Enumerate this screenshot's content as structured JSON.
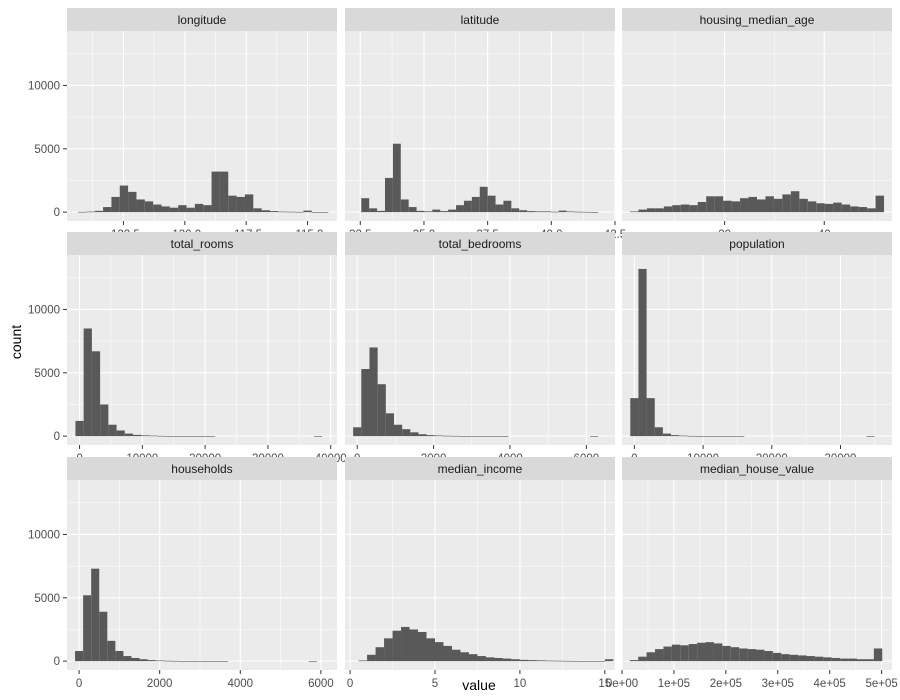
{
  "chart_data": {
    "type": "bar",
    "title": "",
    "xlabel": "value",
    "ylabel": "count",
    "ylim": [
      -700,
      14300
    ],
    "y_ticks": [
      0,
      5000,
      10000
    ],
    "y_tick_labels": [
      "0",
      "5000",
      "10000"
    ],
    "layout": {
      "rows": 3,
      "cols": 3
    },
    "colors": {
      "bar": "#595959",
      "panel": "#ebebeb",
      "strip": "#d9d9d9",
      "grid": "#ffffff"
    },
    "facets": [
      {
        "label": "longitude",
        "xlim": [
          -124.8,
          -113.8
        ],
        "x_ticks": [
          -122.5,
          -120.0,
          -117.5,
          -115.0
        ],
        "x_tick_labels": [
          "-122.5",
          "-120.0",
          "-117.5",
          "-115.0"
        ],
        "bin_start": -124.35,
        "bin_width": 0.34,
        "counts": [
          20,
          40,
          100,
          400,
          1200,
          2100,
          1600,
          1000,
          850,
          600,
          450,
          350,
          550,
          350,
          650,
          550,
          3200,
          3200,
          1300,
          1200,
          1400,
          300,
          150,
          80,
          40,
          30,
          20,
          120,
          10,
          5
        ]
      },
      {
        "label": "latitude",
        "xlim": [
          31.9,
          42.5
        ],
        "x_ticks": [
          32.5,
          35.0,
          37.5,
          40.0,
          42.5
        ],
        "x_tick_labels": [
          "32.5",
          "35.0",
          "37.5",
          "40.0",
          "42.5"
        ],
        "bin_start": 32.54,
        "bin_width": 0.31,
        "counts": [
          1100,
          300,
          100,
          2700,
          5400,
          1000,
          400,
          100,
          60,
          200,
          80,
          200,
          550,
          900,
          1200,
          2000,
          1300,
          600,
          900,
          300,
          150,
          80,
          60,
          60,
          30,
          120,
          50,
          30,
          20,
          10
        ]
      },
      {
        "label": "housing_median_age",
        "xlim": [
          -0.6,
          53.6
        ],
        "x_ticks": [
          20,
          40
        ],
        "x_tick_labels": [
          "20",
          "40"
        ],
        "bin_start": 1,
        "bin_width": 1.7,
        "counts": [
          50,
          200,
          300,
          300,
          450,
          550,
          600,
          550,
          800,
          1250,
          1250,
          900,
          850,
          1100,
          1200,
          1000,
          1250,
          1050,
          1400,
          1650,
          1050,
          850,
          700,
          650,
          750,
          600,
          450,
          400,
          300,
          1300
        ]
      },
      {
        "label": "total_rooms",
        "xlim": [
          -2000,
          41000
        ],
        "x_ticks": [
          0,
          10000,
          20000,
          30000,
          40000
        ],
        "x_tick_labels": [
          "0",
          "10000",
          "20000",
          "30000",
          "40000"
        ],
        "bin_start": -655,
        "bin_width": 1310,
        "counts": [
          1200,
          8500,
          6700,
          2500,
          900,
          450,
          200,
          100,
          60,
          40,
          20,
          10,
          5,
          3,
          2,
          1,
          1,
          0,
          0,
          0,
          0,
          0,
          0,
          0,
          0,
          0,
          0,
          0,
          0,
          1
        ]
      },
      {
        "label": "total_bedrooms",
        "xlim": [
          -320,
          6750
        ],
        "x_ticks": [
          0,
          2000,
          4000,
          6000
        ],
        "x_tick_labels": [
          "0",
          "2000",
          "4000",
          "6000"
        ],
        "bin_start": -107,
        "bin_width": 214,
        "counts": [
          700,
          5300,
          7000,
          4100,
          1800,
          900,
          550,
          300,
          150,
          80,
          50,
          30,
          20,
          10,
          5,
          3,
          2,
          1,
          1,
          0,
          0,
          0,
          0,
          0,
          0,
          0,
          0,
          0,
          0,
          1
        ]
      },
      {
        "label": "population",
        "xlim": [
          -1800,
          37500
        ],
        "x_ticks": [
          0,
          10000,
          20000,
          30000
        ],
        "x_tick_labels": [
          "0",
          "10000",
          "20000",
          "30000"
        ],
        "bin_start": -593,
        "bin_width": 1186,
        "counts": [
          3000,
          13200,
          3000,
          700,
          200,
          80,
          40,
          20,
          10,
          5,
          3,
          2,
          1,
          1,
          0,
          0,
          0,
          0,
          0,
          0,
          0,
          0,
          0,
          0,
          0,
          0,
          0,
          0,
          0,
          1
        ]
      },
      {
        "label": "households",
        "xlim": [
          -300,
          6400
        ],
        "x_ticks": [
          0,
          2000,
          4000,
          6000
        ],
        "x_tick_labels": [
          "0",
          "2000",
          "4000",
          "6000"
        ],
        "bin_start": -100,
        "bin_width": 200,
        "counts": [
          800,
          5200,
          7300,
          3900,
          1600,
          800,
          400,
          250,
          150,
          80,
          50,
          30,
          20,
          10,
          5,
          3,
          2,
          1,
          1,
          0,
          0,
          0,
          0,
          0,
          0,
          0,
          0,
          0,
          0,
          1
        ]
      },
      {
        "label": "median_income",
        "xlim": [
          -0.3,
          15.6
        ],
        "x_ticks": [
          0,
          5,
          10,
          15
        ],
        "x_tick_labels": [
          "0",
          "5",
          "10",
          "15"
        ],
        "bin_start": 0.5,
        "bin_width": 0.5,
        "counts": [
          50,
          500,
          1100,
          1800,
          2400,
          2700,
          2500,
          2300,
          1800,
          1500,
          1200,
          900,
          700,
          550,
          400,
          300,
          250,
          200,
          150,
          100,
          80,
          60,
          40,
          30,
          20,
          15,
          10,
          10,
          10,
          150
        ]
      },
      {
        "label": "median_house_value",
        "xlim": [
          0,
          520000
        ],
        "x_ticks": [
          0,
          100000,
          200000,
          300000,
          400000,
          500000
        ],
        "x_tick_labels": [
          "0e+00",
          "1e+05",
          "2e+05",
          "3e+05",
          "4e+05",
          "5e+05"
        ],
        "bin_start": 15000,
        "bin_width": 16207,
        "counts": [
          80,
          350,
          700,
          950,
          1150,
          1300,
          1250,
          1350,
          1450,
          1500,
          1400,
          1200,
          1100,
          1000,
          950,
          900,
          800,
          650,
          550,
          500,
          450,
          400,
          350,
          300,
          250,
          200,
          200,
          150,
          150,
          1000
        ]
      }
    ]
  }
}
